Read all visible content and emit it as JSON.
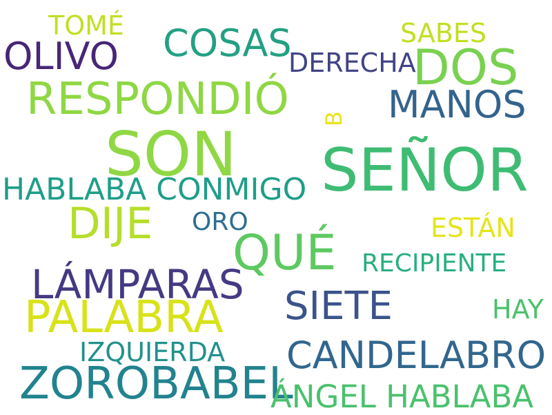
{
  "words": [
    {
      "text": "SEÑOR",
      "color": "#3fbc73"
    },
    {
      "text": "SON",
      "color": "#8fd744"
    },
    {
      "text": "ZOROBABEL",
      "color": "#22838e"
    },
    {
      "text": "QUÉ",
      "color": "#5ec962"
    },
    {
      "text": "PALABRA",
      "color": "#d8e219"
    },
    {
      "text": "CANDELABRO",
      "color": "#31668e"
    },
    {
      "text": "RESPONDIÓ",
      "color": "#8fd744"
    },
    {
      "text": "DOS",
      "color": "#7ad151"
    },
    {
      "text": "DIJE",
      "color": "#b5de2b"
    },
    {
      "text": "LÁMPARAS",
      "color": "#443a83"
    },
    {
      "text": "ÁNGEL HABLABA",
      "color": "#4ac16d"
    },
    {
      "text": "OLIVO",
      "color": "#482677"
    },
    {
      "text": "SIETE",
      "color": "#3b528b"
    },
    {
      "text": "COSAS",
      "color": "#23a083"
    },
    {
      "text": "MANOS",
      "color": "#33638d"
    },
    {
      "text": "HABLABA CONMIGO",
      "color": "#1f9e89"
    },
    {
      "text": "RECIPIENTE",
      "color": "#29af7f"
    },
    {
      "text": "IZQUIERDA",
      "color": "#21918c"
    },
    {
      "text": "DERECHA",
      "color": "#414487"
    },
    {
      "text": "ESTÁN",
      "color": "#e5e419"
    },
    {
      "text": "TOMÉ",
      "color": "#c2df23"
    },
    {
      "text": "SABES",
      "color": "#c2df23"
    },
    {
      "text": "HAY",
      "color": "#4ac16d"
    },
    {
      "text": "ORO",
      "color": "#2e6e8e"
    },
    {
      "text": "B",
      "color": "#e7e419"
    }
  ]
}
